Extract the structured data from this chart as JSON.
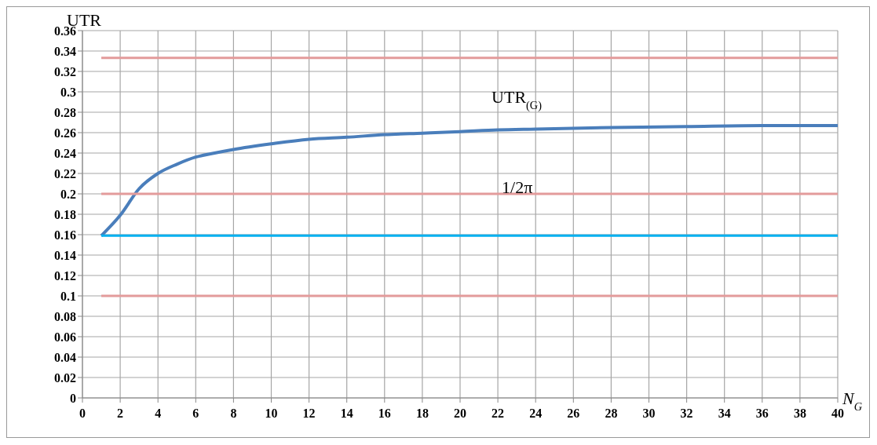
{
  "chart_data": {
    "type": "line",
    "xlabel": "N$_{G}$",
    "ylabel": "UTR",
    "xlim": [
      0,
      40
    ],
    "xticks": [
      0,
      2,
      4,
      6,
      8,
      10,
      12,
      14,
      16,
      18,
      20,
      22,
      24,
      26,
      28,
      30,
      32,
      34,
      36,
      38,
      40
    ],
    "ylim": [
      0,
      0.36
    ],
    "yticks": [
      0,
      0.02,
      0.04,
      0.06,
      0.08,
      0.1,
      0.12,
      0.14,
      0.16,
      0.18,
      0.2,
      0.22,
      0.24,
      0.26,
      0.28,
      0.3,
      0.32,
      0.34,
      0.36
    ],
    "grid": true,
    "legend": false,
    "marker": "none",
    "line_style": "solid",
    "series": [
      {
        "name": "UTR$_{(G)}$",
        "color": "#4a7ebb",
        "x": [
          1,
          2,
          3,
          4,
          5,
          6,
          7,
          8,
          10,
          12,
          14,
          16,
          18,
          20,
          22,
          24,
          28,
          32,
          36,
          40
        ],
        "values": [
          0.159,
          0.179,
          0.205,
          0.22,
          0.229,
          0.236,
          0.24,
          0.2435,
          0.249,
          0.2535,
          0.2555,
          0.258,
          0.2595,
          0.261,
          0.2627,
          0.2635,
          0.265,
          0.266,
          0.267,
          0.267
        ]
      },
      {
        "name": "1/2π",
        "color": "#00b0f0",
        "x": [
          1,
          40
        ],
        "values": [
          0.159,
          0.159
        ]
      },
      {
        "color": "#e39b9b",
        "x": [
          1,
          40
        ],
        "values": [
          0.3333,
          0.3333
        ]
      },
      {
        "color": "#e39b9b",
        "x": [
          1,
          40
        ],
        "values": [
          0.2,
          0.2
        ]
      },
      {
        "color": "#e39b9b",
        "x": [
          1,
          40
        ],
        "values": [
          0.1,
          0.1
        ]
      }
    ]
  }
}
